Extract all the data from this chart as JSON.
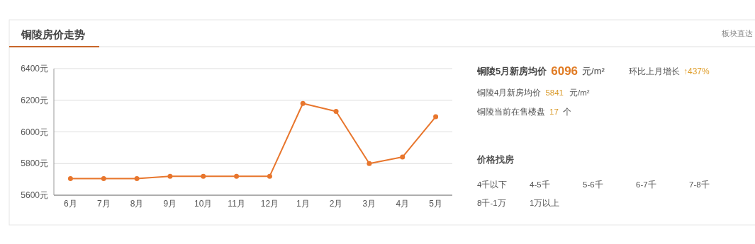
{
  "chart_data": {
    "type": "line",
    "title": "铜陵房价走势",
    "categories": [
      "6月",
      "7月",
      "8月",
      "9月",
      "10月",
      "11月",
      "12月",
      "1月",
      "2月",
      "3月",
      "4月",
      "5月"
    ],
    "series": [
      {
        "color": "#e8762d",
        "values": [
          5705,
          5705,
          5705,
          5720,
          5720,
          5720,
          5720,
          6180,
          6130,
          5800,
          5841,
          6096
        ]
      }
    ],
    "ylim": [
      5600,
      6400
    ],
    "yticks": [
      {
        "value": 5600,
        "label": "5600元"
      },
      {
        "value": 5800,
        "label": "5800元"
      },
      {
        "value": 6000,
        "label": "6000元"
      },
      {
        "value": 6200,
        "label": "6200元"
      },
      {
        "value": 6400,
        "label": "6400元"
      }
    ],
    "grid": "y",
    "marker": "circle",
    "line_style": "solid",
    "annotations": [
      "铜陵5月新房均价",
      "6096",
      "元/m²",
      "环比上月增长",
      "↑437%",
      "铜陵4月新房均价",
      "5841",
      "元/m²",
      "铜陵当前在售楼盘",
      "17",
      "个",
      "价格找房",
      "4千以下",
      "4-5千",
      "5-6千",
      "6-7千",
      "7-8千",
      "8千-1万",
      "1万以上",
      "板块直达"
    ]
  }
}
